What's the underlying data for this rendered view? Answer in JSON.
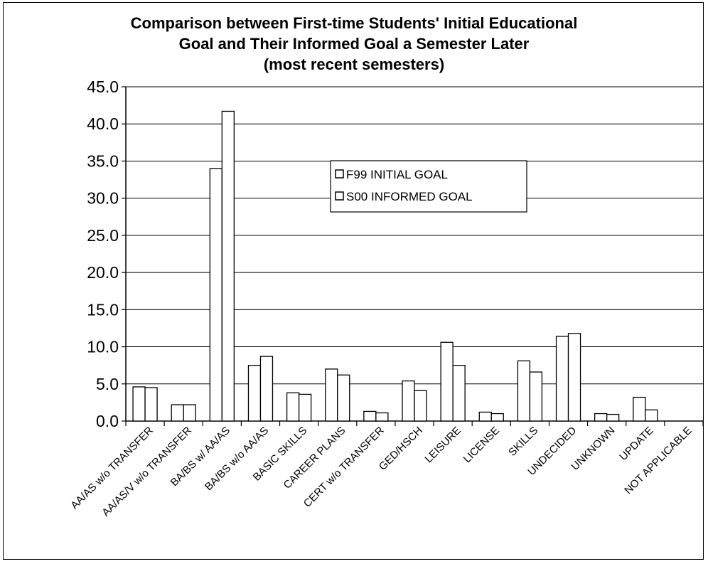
{
  "chart_data": {
    "type": "bar",
    "title_lines": [
      "Comparison between First-time Students' Initial Educational",
      "Goal and Their Informed Goal a Semester Later",
      "(most recent semesters)"
    ],
    "xlabel": "",
    "ylabel": "",
    "ylim": [
      0,
      45
    ],
    "yticks": [
      "0.0",
      "5.0",
      "10.0",
      "15.0",
      "20.0",
      "25.0",
      "30.0",
      "35.0",
      "40.0",
      "45.0"
    ],
    "grid": true,
    "legend_placement": "center",
    "categories": [
      "AA/AS w/o TRANSFER",
      "AA/AS/V w/o TRANSFER",
      "BA/BS w/ AA/AS",
      "BA/BS w/o AA/AS",
      "BASIC SKILLS",
      "CAREER PLANS",
      "CERT w/o TRANSFER",
      "GED/HSCH",
      "LEISURE",
      "LICENSE",
      "SKILLS",
      "UNDECIDED",
      "UNKNOWN",
      "UPDATE",
      "NOT APPLICABLE"
    ],
    "series": [
      {
        "name": "F99 INITIAL GOAL",
        "values": [
          4.6,
          2.2,
          34.0,
          7.5,
          3.8,
          7.0,
          1.3,
          5.4,
          10.6,
          1.2,
          8.1,
          11.4,
          1.0,
          3.2,
          0
        ]
      },
      {
        "name": "S00 INFORMED GOAL",
        "values": [
          4.5,
          2.2,
          41.7,
          8.7,
          3.6,
          6.2,
          1.1,
          4.1,
          7.5,
          1.0,
          6.6,
          11.8,
          0.9,
          1.5,
          0
        ]
      }
    ]
  }
}
